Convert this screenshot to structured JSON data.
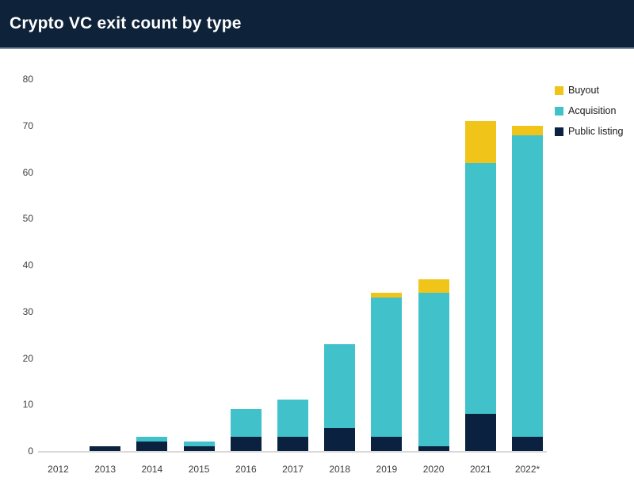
{
  "header": {
    "title": "Crypto VC exit count by type"
  },
  "colors": {
    "header_bg": "#0E2239",
    "header_border": "#7E93A8",
    "title_text": "#FFFFFF",
    "axis_line": "#D9D9D9",
    "tick_text": "#3D3D3D",
    "legend_text": "#1A1A1A",
    "buyout": "#F0C419",
    "acquisition": "#41C2CA",
    "public_listing": "#0A2240"
  },
  "legend": {
    "items": [
      {
        "label": "Buyout",
        "color": "#F0C419"
      },
      {
        "label": "Acquisition",
        "color": "#41C2CA"
      },
      {
        "label": "Public listing",
        "color": "#0A2240"
      }
    ]
  },
  "chart_data": {
    "type": "bar",
    "stacked": true,
    "title": "Crypto VC exit count by type",
    "xlabel": "",
    "ylabel": "",
    "categories": [
      "2012",
      "2013",
      "2014",
      "2015",
      "2016",
      "2017",
      "2018",
      "2019",
      "2020",
      "2021",
      "2022*"
    ],
    "series": [
      {
        "name": "Public listing",
        "color": "#0A2240",
        "values": [
          0,
          1,
          2,
          1,
          3,
          3,
          5,
          3,
          1,
          8,
          3
        ]
      },
      {
        "name": "Acquisition",
        "color": "#41C2CA",
        "values": [
          0,
          0,
          1,
          1,
          6,
          8,
          18,
          30,
          33,
          54,
          65
        ]
      },
      {
        "name": "Buyout",
        "color": "#F0C419",
        "values": [
          0,
          0,
          0,
          0,
          0,
          0,
          0,
          1,
          3,
          9,
          2
        ]
      }
    ],
    "totals": [
      0,
      1,
      3,
      2,
      9,
      11,
      23,
      34,
      37,
      71,
      70
    ],
    "ylim": [
      0,
      80
    ],
    "yticks": [
      0,
      10,
      20,
      30,
      40,
      50,
      60,
      70,
      80
    ],
    "grid": false,
    "legend_position": "top-right"
  }
}
